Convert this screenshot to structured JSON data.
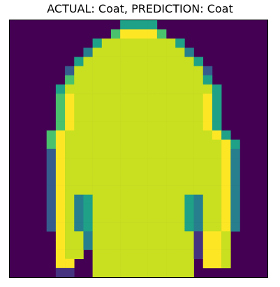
{
  "title": "ACTUAL: Coat, PREDICTION: Coat",
  "image": {
    "description_colormap": "viridis",
    "rows": 28,
    "cols": 28,
    "background_color": "#440154",
    "palette": {
      "bg": "#440154",
      "dark_purple": "#46337f",
      "blue": "#365c8d",
      "teal": "#277f8e",
      "green_teal": "#1fa187",
      "green": "#4ac16d",
      "lime": "#a0da39",
      "lime_light": "#c8e020",
      "yellow": "#fde725"
    }
  }
}
